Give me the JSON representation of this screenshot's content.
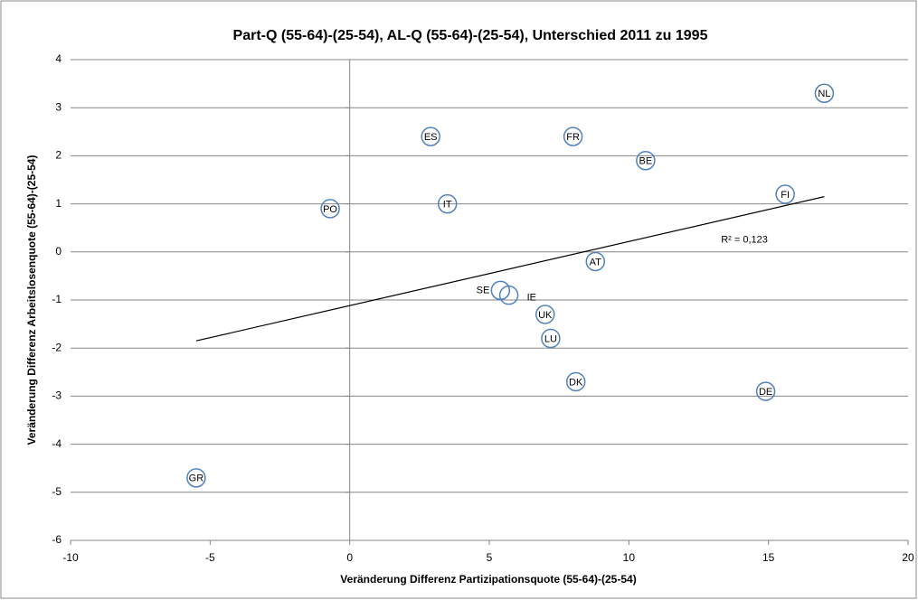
{
  "chart_data": {
    "type": "scatter",
    "title": "Part-Q (55-64)-(25-54), AL-Q (55-64)-(25-54), Unterschied 2011 zu 1995",
    "x_label": "Veränderung Differenz Partizipationsquote (55-64)-(25-54)",
    "y_label": "Veränderung Differenz Arbeitslosenquote (55-64)-(25-54)",
    "point_labels": [
      "NL",
      "ES",
      "FR",
      "BE",
      "FI",
      "PO",
      "IT",
      "AT",
      "SE",
      "IE",
      "UK",
      "LU",
      "DK",
      "DE",
      "GR"
    ],
    "x": [
      17,
      2.9,
      8.0,
      10.6,
      15.6,
      -0.7,
      3.5,
      8.8,
      5.4,
      5.7,
      7.0,
      7.2,
      8.1,
      14.9,
      -5.5
    ],
    "y": [
      3.3,
      2.4,
      2.4,
      1.9,
      1.2,
      0.9,
      1.0,
      -0.2,
      -0.8,
      -0.9,
      -1.3,
      -1.8,
      -2.7,
      -2.9,
      -4.7
    ],
    "color": "#4f81bd",
    "trendline": {
      "x": [
        -5.5,
        17
      ],
      "y": [
        -1.85,
        1.15
      ],
      "color": "#000000"
    },
    "annotation": "R² = 0,123",
    "xlim": [
      -10,
      20
    ],
    "xticks": [
      -10,
      -5,
      0,
      5,
      10,
      15,
      20
    ],
    "ylim": [
      -6,
      4
    ],
    "yticks": [
      -6,
      -5,
      -4,
      -3,
      -2,
      -1,
      0,
      1,
      2,
      3,
      4
    ],
    "grid": true
  }
}
